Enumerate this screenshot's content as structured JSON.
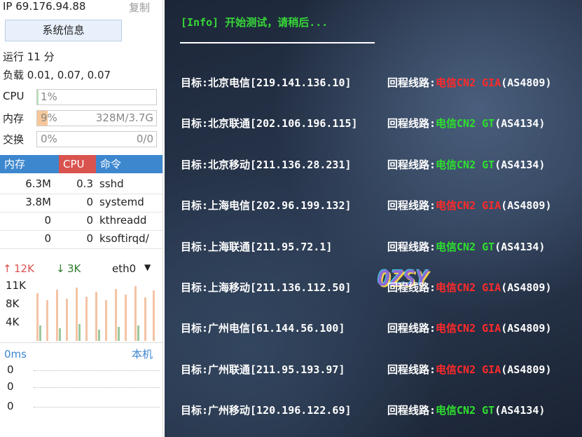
{
  "sidebar": {
    "ip": "IP 69.176.94.88",
    "copy": "复制",
    "sysinfo_button": "系统信息",
    "uptime": "运行 11 分",
    "load": "负载 0.01, 0.07, 0.07",
    "meters": [
      {
        "label": "CPU",
        "value": 1,
        "value_label": "1%",
        "color": "#b7e3b7"
      },
      {
        "label": "内存",
        "value": 9,
        "value_label": "9%",
        "detail": "328M/3.7G",
        "color": "#f6c79a"
      },
      {
        "label": "交换",
        "value": 0,
        "value_label": "0%",
        "detail": "0/0",
        "color": "#cccccc"
      }
    ],
    "process_table": {
      "headers": [
        "内存",
        "CPU",
        "命令"
      ],
      "rows": [
        [
          "6.3M",
          "0.3",
          "sshd"
        ],
        [
          "3.8M",
          "0",
          "systemd"
        ],
        [
          "0",
          "0",
          "kthreadd"
        ],
        [
          "0",
          "0",
          "ksoftirqd/"
        ]
      ]
    },
    "network": {
      "up": "12K",
      "down": "3K",
      "interface": "eth0",
      "axis_labels": [
        "11K",
        "8K",
        "4K"
      ]
    },
    "latency": {
      "ms": "0ms",
      "host": "本机",
      "values": [
        "0",
        "0",
        "0"
      ]
    }
  },
  "terminal": {
    "info": "[Info] 开始测试，请稍后...",
    "watermark": "OZSY",
    "rows": [
      {
        "target": "目标:北京电信[219.141.136.10]",
        "route_label": "回程线路:",
        "line": "电信CN2 GIA",
        "asn": "(AS4809)",
        "color": "#ff2a2a"
      },
      {
        "target": "目标:北京联通[202.106.196.115]",
        "route_label": "回程线路:",
        "line": "电信CN2 GT",
        "asn": "(AS4134)",
        "color": "#2ee02e"
      },
      {
        "target": "目标:北京移动[211.136.28.231]",
        "route_label": "回程线路:",
        "line": "电信CN2 GT",
        "asn": "(AS4134)",
        "color": "#2ee02e"
      },
      {
        "target": "目标:上海电信[202.96.199.132]",
        "route_label": "回程线路:",
        "line": "电信CN2 GIA",
        "asn": "(AS4809)",
        "color": "#ff2a2a"
      },
      {
        "target": "目标:上海联通[211.95.72.1]",
        "route_label": "回程线路:",
        "line": "电信CN2 GT",
        "asn": "(AS4134)",
        "color": "#2ee02e"
      },
      {
        "target": "目标:上海移动[211.136.112.50]",
        "route_label": "回程线路:",
        "line": "电信CN2 GIA",
        "asn": "(AS4809)",
        "color": "#ff2a2a"
      },
      {
        "target": "目标:广州电信[61.144.56.100]",
        "route_label": "回程线路:",
        "line": "电信CN2 GIA",
        "asn": "(AS4809)",
        "color": "#ff2a2a"
      },
      {
        "target": "目标:广州联通[211.95.193.97]",
        "route_label": "回程线路:",
        "line": "电信CN2 GIA",
        "asn": "(AS4809)",
        "color": "#ff2a2a"
      },
      {
        "target": "目标:广州移动[120.196.122.69]",
        "route_label": "回程线路:",
        "line": "电信CN2 GT",
        "asn": "(AS4134)",
        "color": "#2ee02e"
      }
    ]
  }
}
